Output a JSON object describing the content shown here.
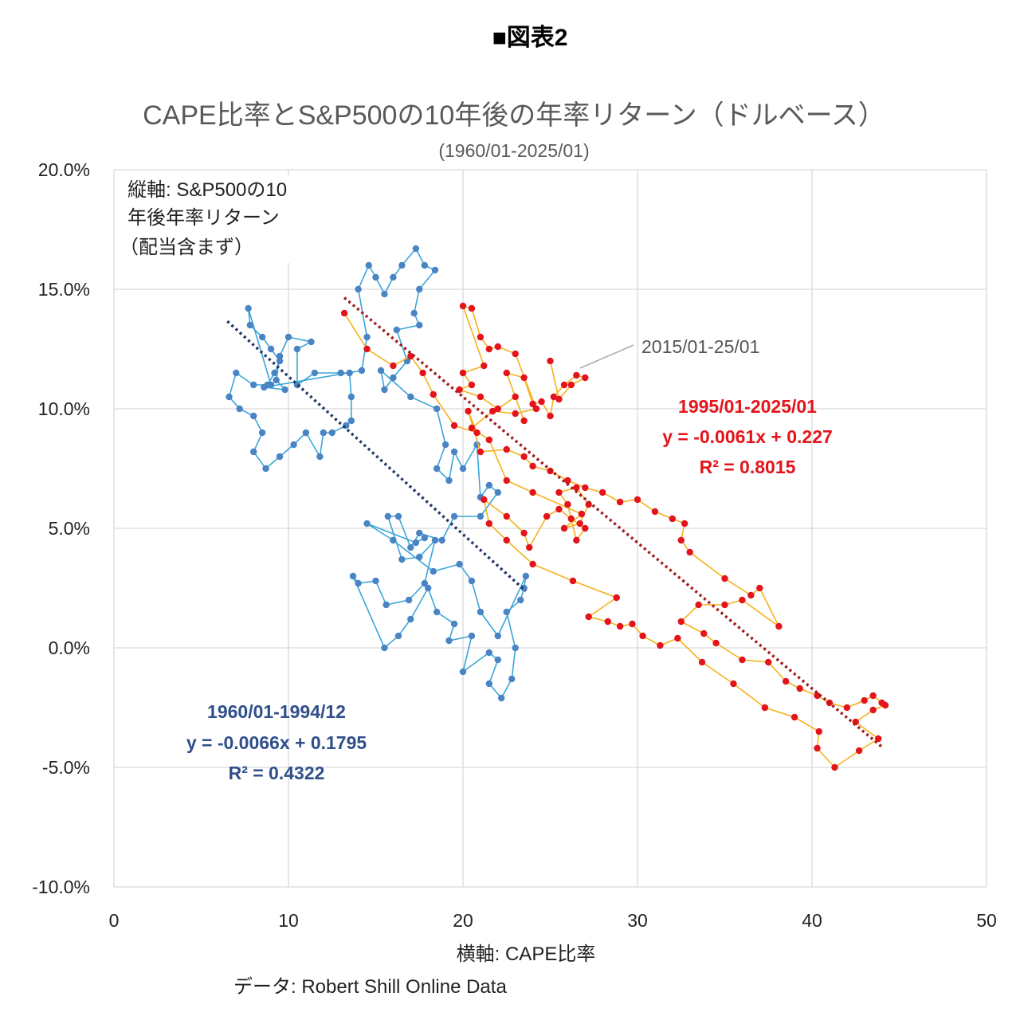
{
  "figure_label": "■図表2",
  "chart_data": {
    "type": "scatter",
    "title": "CAPE比率とS&P500の10年後の年率リターン（ドルベース）",
    "subtitle": "(1960/01-2025/01)",
    "xlabel": "横軸: CAPE比率",
    "ylabel_lines": [
      "縦軸: S&P500の10",
      "年後年率リターン",
      "（配当含まず）"
    ],
    "source": "データ: Robert Shill Online Data",
    "xlim": [
      0,
      50
    ],
    "ylim": [
      -10,
      20
    ],
    "x_ticks": [
      "0",
      "10",
      "20",
      "30",
      "40",
      "50"
    ],
    "y_ticks": [
      "-10.0%",
      "-5.0%",
      "0.0%",
      "5.0%",
      "10.0%",
      "15.0%",
      "20.0%"
    ],
    "grid": true,
    "colors": {
      "blue_marker": "#4a84c4",
      "blue_line": "#3aa6d9",
      "blue_trend": "#1f3864",
      "blue_text": "#2f4f8a",
      "red_marker": "#e3141b",
      "red_line": "#f5b21c",
      "red_trend": "#a01a1a",
      "red_text": "#e3141b",
      "annotation": "#555555"
    },
    "series": [
      {
        "name": "1960/01-1994/12",
        "equation": "y = -0.0066x + 0.1795",
        "r2": "R² = 0.4322",
        "trend": {
          "slope": -0.66,
          "intercept": 17.95,
          "x_range": [
            6.5,
            23.6
          ]
        },
        "points": [
          [
            9,
            11
          ],
          [
            7.7,
            14.2
          ],
          [
            7.8,
            13.5
          ],
          [
            8.5,
            13
          ],
          [
            9,
            12.5
          ],
          [
            9.5,
            12
          ],
          [
            9.2,
            11.5
          ],
          [
            8.8,
            11
          ],
          [
            8,
            11
          ],
          [
            7,
            11.5
          ],
          [
            6.6,
            10.5
          ],
          [
            7.2,
            10
          ],
          [
            8,
            9.7
          ],
          [
            8.5,
            9
          ],
          [
            8,
            8.2
          ],
          [
            8.7,
            7.5
          ],
          [
            9.5,
            8
          ],
          [
            10.3,
            8.5
          ],
          [
            11,
            9
          ],
          [
            11.8,
            8
          ],
          [
            12,
            9
          ],
          [
            12.5,
            9
          ],
          [
            13.3,
            9.3
          ],
          [
            13.6,
            9.5
          ],
          [
            13.6,
            10.5
          ],
          [
            13.5,
            11.5
          ],
          [
            13,
            11.5
          ],
          [
            11.5,
            11.5
          ],
          [
            10.5,
            11
          ],
          [
            10.5,
            12.5
          ],
          [
            11.3,
            12.8
          ],
          [
            10,
            13
          ],
          [
            9.5,
            12.2
          ],
          [
            9.3,
            11.2
          ],
          [
            9.8,
            10.8
          ],
          [
            8.6,
            10.9
          ],
          [
            14.2,
            11.6
          ],
          [
            14.5,
            13
          ],
          [
            14,
            15
          ],
          [
            14.6,
            16
          ],
          [
            15,
            15.5
          ],
          [
            15.5,
            14.8
          ],
          [
            16,
            15.5
          ],
          [
            16.5,
            16
          ],
          [
            17.3,
            16.7
          ],
          [
            17.8,
            16
          ],
          [
            18.4,
            15.8
          ],
          [
            17.5,
            15
          ],
          [
            17.2,
            14
          ],
          [
            17.5,
            13.5
          ],
          [
            16.2,
            13.3
          ],
          [
            16.8,
            12
          ],
          [
            16,
            11.3
          ],
          [
            15.5,
            10.8
          ],
          [
            15.3,
            11.6
          ],
          [
            17,
            10.5
          ],
          [
            18.5,
            10
          ],
          [
            19,
            8.5
          ],
          [
            18.5,
            7.5
          ],
          [
            19.2,
            7
          ],
          [
            19.5,
            8.2
          ],
          [
            20,
            7.5
          ],
          [
            20.8,
            8.5
          ],
          [
            21,
            6.3
          ],
          [
            21.5,
            6.8
          ],
          [
            22,
            6.5
          ],
          [
            21,
            5.5
          ],
          [
            19.5,
            5.5
          ],
          [
            18.8,
            4.5
          ],
          [
            17.5,
            4.8
          ],
          [
            17,
            4.2
          ],
          [
            16.3,
            5.5
          ],
          [
            15.7,
            5.5
          ],
          [
            16.5,
            3.7
          ],
          [
            17.5,
            3.8
          ],
          [
            18.4,
            4.5
          ],
          [
            17.8,
            2.7
          ],
          [
            16.9,
            2
          ],
          [
            15.6,
            1.8
          ],
          [
            15,
            2.8
          ],
          [
            14,
            2.7
          ],
          [
            13.7,
            3
          ],
          [
            15.5,
            0
          ],
          [
            16.3,
            0.5
          ],
          [
            17,
            1.2
          ],
          [
            18,
            2.5
          ],
          [
            18.5,
            1.5
          ],
          [
            19.5,
            1
          ],
          [
            19.2,
            0.3
          ],
          [
            20.5,
            0.5
          ],
          [
            20,
            -1
          ],
          [
            21.5,
            -0.2
          ],
          [
            22,
            -0.5
          ],
          [
            21.5,
            -1.5
          ],
          [
            22.2,
            -2.1
          ],
          [
            22.8,
            -1.3
          ],
          [
            23,
            0
          ],
          [
            22.5,
            1.5
          ],
          [
            23.3,
            2
          ],
          [
            23.5,
            2.5
          ],
          [
            23.6,
            3
          ],
          [
            22,
            0.5
          ],
          [
            21,
            1.5
          ],
          [
            20.5,
            2.8
          ],
          [
            19.8,
            3.5
          ],
          [
            18.3,
            3.2
          ],
          [
            16,
            4.5
          ],
          [
            14.5,
            5.2
          ],
          [
            17.3,
            4.4
          ],
          [
            17.8,
            4.6
          ]
        ]
      },
      {
        "name": "1995/01-2025/01",
        "equation": "y = -0.0061x + 0.227",
        "r2": "R² = 0.8015",
        "annotation": "2015/01-25/01",
        "trend": {
          "slope": -0.61,
          "intercept": 22.7,
          "x_range": [
            13.2,
            44
          ]
        },
        "points": [
          [
            13.2,
            14
          ],
          [
            14.5,
            12.5
          ],
          [
            16,
            11.8
          ],
          [
            17,
            12.2
          ],
          [
            17.7,
            11.5
          ],
          [
            18.3,
            10.6
          ],
          [
            19.5,
            9.3
          ],
          [
            20.8,
            9
          ],
          [
            20.3,
            9.9
          ],
          [
            21,
            8.2
          ],
          [
            22.5,
            8.3
          ],
          [
            23.5,
            8
          ],
          [
            24,
            7.6
          ],
          [
            25,
            7.4
          ],
          [
            26,
            7
          ],
          [
            27,
            6.7
          ],
          [
            28,
            6.5
          ],
          [
            29,
            6.1
          ],
          [
            30,
            6.2
          ],
          [
            31,
            5.7
          ],
          [
            32,
            5.4
          ],
          [
            32.7,
            5.2
          ],
          [
            32.5,
            4.5
          ],
          [
            33,
            4
          ],
          [
            35,
            2.9
          ],
          [
            36.5,
            2.2
          ],
          [
            37,
            2.5
          ],
          [
            38.1,
            0.9
          ],
          [
            36,
            2
          ],
          [
            35,
            1.8
          ],
          [
            33.5,
            1.8
          ],
          [
            32.5,
            1.1
          ],
          [
            33.8,
            0.6
          ],
          [
            34.5,
            0.2
          ],
          [
            36,
            -0.5
          ],
          [
            37.5,
            -0.6
          ],
          [
            38.5,
            -1.4
          ],
          [
            39.3,
            -1.7
          ],
          [
            40.3,
            -2
          ],
          [
            41,
            -2.3
          ],
          [
            42,
            -2.5
          ],
          [
            43,
            -2.2
          ],
          [
            43.5,
            -2
          ],
          [
            44,
            -2.3
          ],
          [
            44.2,
            -2.4
          ],
          [
            43.5,
            -2.6
          ],
          [
            42.5,
            -3.1
          ],
          [
            43.8,
            -3.8
          ],
          [
            42.7,
            -4.3
          ],
          [
            41.3,
            -5
          ],
          [
            40.3,
            -4.2
          ],
          [
            40.4,
            -3.5
          ],
          [
            39,
            -2.9
          ],
          [
            37.3,
            -2.5
          ],
          [
            35.5,
            -1.5
          ],
          [
            33.7,
            -0.6
          ],
          [
            32.3,
            0.4
          ],
          [
            31.3,
            0.1
          ],
          [
            30.3,
            0.5
          ],
          [
            29.7,
            1
          ],
          [
            29,
            0.9
          ],
          [
            28.3,
            1.1
          ],
          [
            27.2,
            1.3
          ],
          [
            28.8,
            2.1
          ],
          [
            26.3,
            2.8
          ],
          [
            24,
            3.5
          ],
          [
            22.5,
            4.5
          ],
          [
            21.5,
            5.2
          ],
          [
            21.2,
            6.2
          ],
          [
            22.5,
            5.5
          ],
          [
            23.5,
            4.8
          ],
          [
            23.8,
            4.2
          ],
          [
            24.8,
            5.5
          ],
          [
            25.5,
            5.8
          ],
          [
            26.2,
            5.4
          ],
          [
            27,
            5
          ],
          [
            26.5,
            4.5
          ],
          [
            26,
            6
          ],
          [
            25.5,
            6.5
          ],
          [
            26.5,
            6.7
          ],
          [
            27.2,
            6
          ],
          [
            26.7,
            5.2
          ],
          [
            25.8,
            5
          ],
          [
            26.8,
            5.6
          ],
          [
            24,
            6.5
          ],
          [
            22.5,
            7
          ],
          [
            21.5,
            8.7
          ],
          [
            20.5,
            9.2
          ],
          [
            21.7,
            9.9
          ],
          [
            23,
            9.8
          ],
          [
            24.2,
            10
          ],
          [
            23,
            12.3
          ],
          [
            22,
            12.6
          ],
          [
            21.5,
            12.5
          ],
          [
            21,
            13
          ],
          [
            20.5,
            14.2
          ],
          [
            20,
            14.3
          ],
          [
            21.2,
            11.8
          ],
          [
            20,
            11.5
          ],
          [
            20.5,
            11
          ],
          [
            19.8,
            10.8
          ],
          [
            21,
            10.5
          ],
          [
            22,
            10
          ],
          [
            23,
            10.5
          ],
          [
            23.5,
            9.5
          ],
          [
            22.5,
            11.5
          ],
          [
            23.5,
            11.3
          ],
          [
            24,
            10.2
          ],
          [
            24.5,
            10.3
          ],
          [
            25,
            9.7
          ],
          [
            25.2,
            10.5
          ],
          [
            25.8,
            11
          ],
          [
            26.5,
            11.4
          ],
          [
            27,
            11.3
          ],
          [
            26.2,
            11
          ],
          [
            25.5,
            10.4
          ],
          [
            25,
            12
          ]
        ]
      }
    ]
  }
}
